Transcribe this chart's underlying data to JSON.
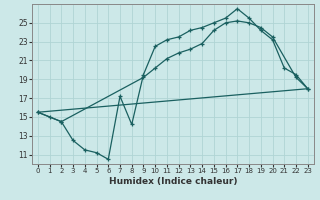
{
  "xlabel": "Humidex (Indice chaleur)",
  "bg_color": "#cce8e8",
  "grid_color": "#b0d4d4",
  "line_color": "#1a6060",
  "xlim": [
    -0.5,
    23.5
  ],
  "ylim": [
    10.0,
    27.0
  ],
  "xticks": [
    0,
    1,
    2,
    3,
    4,
    5,
    6,
    7,
    8,
    9,
    10,
    11,
    12,
    13,
    14,
    15,
    16,
    17,
    18,
    19,
    20,
    21,
    22,
    23
  ],
  "yticks": [
    11,
    13,
    15,
    17,
    19,
    21,
    23,
    25
  ],
  "line1_x": [
    0,
    1,
    2,
    3,
    4,
    5,
    6,
    7,
    8,
    9,
    10,
    11,
    12,
    13,
    14,
    15,
    16,
    17,
    18,
    19,
    20,
    21,
    22,
    23
  ],
  "line1_y": [
    15.5,
    15.0,
    14.5,
    12.5,
    11.5,
    11.2,
    10.5,
    17.2,
    14.2,
    19.5,
    22.5,
    23.2,
    23.5,
    24.2,
    24.5,
    25.0,
    25.5,
    26.5,
    25.5,
    24.2,
    23.2,
    20.2,
    19.5,
    18.0
  ],
  "line2_x": [
    0,
    2,
    9,
    10,
    11,
    12,
    13,
    14,
    15,
    16,
    17,
    18,
    19,
    20,
    22,
    23
  ],
  "line2_y": [
    15.5,
    14.5,
    19.2,
    20.2,
    21.2,
    21.8,
    22.2,
    22.8,
    24.2,
    25.0,
    25.2,
    25.0,
    24.5,
    23.5,
    19.2,
    18.0
  ],
  "line3_x": [
    0,
    23
  ],
  "line3_y": [
    15.5,
    18.0
  ]
}
